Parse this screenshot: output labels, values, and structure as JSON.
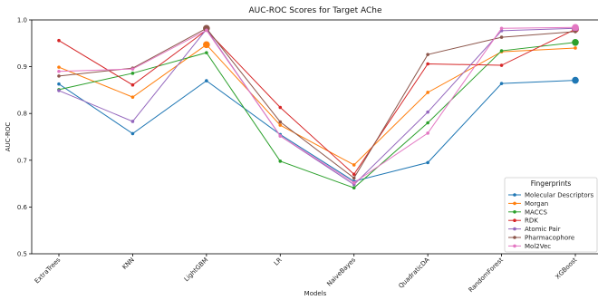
{
  "chart_data": {
    "type": "line",
    "title": "AUC-ROC Scores for Target AChe",
    "xlabel": "Models",
    "ylabel": "AUC-ROC",
    "ylim": [
      0.5,
      1.0
    ],
    "yticks": [
      0.5,
      0.6,
      0.7,
      0.8,
      0.9,
      1.0
    ],
    "grid": false,
    "legend": {
      "title": "Fingerprints",
      "placement": "lower-right"
    },
    "categories": [
      "ExtraTrees",
      "KNN",
      "LightGBM",
      "LR",
      "NaiveBayes",
      "QuadraticDA",
      "RandomForest",
      "XGBoost"
    ],
    "series": [
      {
        "name": "Molecular Descriptors",
        "color": "#1f77b4",
        "values": [
          0.863,
          0.757,
          0.87,
          0.755,
          0.655,
          0.695,
          0.864,
          0.871
        ],
        "best_index": 7
      },
      {
        "name": "Morgan",
        "color": "#ff7f0e",
        "values": [
          0.899,
          0.835,
          0.947,
          0.775,
          0.69,
          0.845,
          0.932,
          0.94
        ],
        "best_index": 2
      },
      {
        "name": "MACCS",
        "color": "#2ca02c",
        "values": [
          0.851,
          0.886,
          0.93,
          0.698,
          0.641,
          0.78,
          0.934,
          0.952
        ],
        "best_index": 7
      },
      {
        "name": "RDK",
        "color": "#d62728",
        "values": [
          0.956,
          0.861,
          0.978,
          0.813,
          0.67,
          0.906,
          0.903,
          0.98
        ],
        "best_index": 7
      },
      {
        "name": "Atomic Pair",
        "color": "#9467bd",
        "values": [
          0.849,
          0.783,
          0.98,
          0.752,
          0.648,
          0.803,
          0.977,
          0.982
        ],
        "best_index": 7
      },
      {
        "name": "Pharmacophore",
        "color": "#8c564b",
        "values": [
          0.88,
          0.897,
          0.982,
          0.782,
          0.662,
          0.926,
          0.963,
          0.975
        ],
        "best_index": 2
      },
      {
        "name": "Mol2Vec",
        "color": "#e377c2",
        "values": [
          0.89,
          0.895,
          0.978,
          0.752,
          0.652,
          0.758,
          0.982,
          0.984
        ],
        "best_index": 7
      }
    ]
  }
}
